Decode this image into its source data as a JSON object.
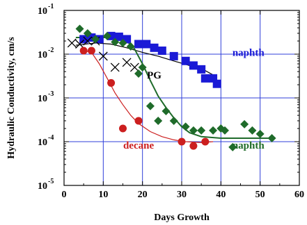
{
  "chart_data": {
    "type": "scatter",
    "title": "",
    "xlabel": "Days Growth",
    "ylabel": "Hydraulic Conductivity, cm/s",
    "xlim": [
      0,
      60
    ],
    "ylim": [
      1e-05,
      0.1
    ],
    "yscale": "log",
    "grid": true,
    "x_ticks": [
      0,
      10,
      20,
      30,
      40,
      50,
      60
    ],
    "y_ticks": [
      {
        "value": 0.1,
        "base": "10",
        "exp": "-1"
      },
      {
        "value": 0.01,
        "base": "10",
        "exp": "-2"
      },
      {
        "value": 0.001,
        "base": "10",
        "exp": "-3"
      },
      {
        "value": 0.0001,
        "base": "10",
        "exp": "-4"
      },
      {
        "value": 1e-05,
        "base": "10",
        "exp": "-5"
      }
    ],
    "series": [
      {
        "name": "naphth",
        "marker": "square",
        "color": "#1a1ad6",
        "label_color": "#1a1ad6",
        "label_at": [
          47,
          0.0092
        ],
        "points": [
          [
            5,
            0.022
          ],
          [
            7,
            0.024
          ],
          [
            9,
            0.022
          ],
          [
            12,
            0.026
          ],
          [
            14,
            0.025
          ],
          [
            16,
            0.022
          ],
          [
            19,
            0.017
          ],
          [
            21,
            0.017
          ],
          [
            23,
            0.014
          ],
          [
            25,
            0.012
          ],
          [
            28,
            0.009
          ],
          [
            31,
            0.007
          ],
          [
            33,
            0.0055
          ],
          [
            35,
            0.0045
          ],
          [
            36,
            0.0028
          ],
          [
            38,
            0.0028
          ],
          [
            39,
            0.0021
          ]
        ],
        "trend": []
      },
      {
        "name": "PG",
        "marker": "x",
        "color": "#000000",
        "label_color": "#000000",
        "label_at": [
          23,
          0.0028
        ],
        "points": [
          [
            2,
            0.018
          ],
          [
            4,
            0.017
          ],
          [
            6,
            0.02
          ],
          [
            8,
            0.02
          ],
          [
            10,
            0.009
          ],
          [
            13,
            0.005
          ],
          [
            16,
            0.0065
          ],
          [
            18,
            0.005
          ]
        ],
        "trend": [
          [
            3,
            0.016
          ],
          [
            8,
            0.018
          ],
          [
            12,
            0.017
          ],
          [
            16,
            0.014
          ],
          [
            20,
            0.011
          ],
          [
            24,
            0.009
          ],
          [
            28,
            0.007
          ],
          [
            32,
            0.0055
          ],
          [
            36,
            0.0042
          ],
          [
            39,
            0.003
          ]
        ]
      },
      {
        "name": "decane",
        "marker": "circle",
        "color": "#cc1f1f",
        "label_color": "#cc1f1f",
        "label_at": [
          19,
          7e-05
        ],
        "points": [
          [
            5,
            0.012
          ],
          [
            7,
            0.012
          ],
          [
            12,
            0.0022
          ],
          [
            15,
            0.0002
          ],
          [
            19,
            0.0003
          ],
          [
            30,
            0.0001
          ],
          [
            33,
            8e-05
          ],
          [
            36,
            0.0001
          ]
        ],
        "trend": [
          [
            5,
            0.012
          ],
          [
            7,
            0.011
          ],
          [
            9,
            0.006
          ],
          [
            11,
            0.0028
          ],
          [
            13,
            0.0013
          ],
          [
            15,
            0.0007
          ],
          [
            17,
            0.0004
          ],
          [
            19,
            0.00026
          ],
          [
            22,
            0.00017
          ],
          [
            25,
            0.00013
          ],
          [
            28,
            0.00011
          ],
          [
            31,
            0.0001
          ],
          [
            35,
            9.5e-05
          ],
          [
            38,
            0.0001
          ]
        ]
      },
      {
        "name": "naphth",
        "marker": "diamond",
        "color": "#1f6b2a",
        "label_color": "#1f6b2a",
        "label_at": [
          47,
          7e-05
        ],
        "points": [
          [
            4,
            0.038
          ],
          [
            6,
            0.03
          ],
          [
            8,
            0.022
          ],
          [
            11,
            0.026
          ],
          [
            13,
            0.019
          ],
          [
            15,
            0.018
          ],
          [
            17,
            0.015
          ],
          [
            19,
            0.0036
          ],
          [
            20,
            0.005
          ],
          [
            22,
            0.00065
          ],
          [
            24,
            0.0003
          ],
          [
            26,
            0.0005
          ],
          [
            28,
            0.0003
          ],
          [
            31,
            0.00022
          ],
          [
            33,
            0.00018
          ],
          [
            35,
            0.00018
          ],
          [
            38,
            0.00018
          ],
          [
            40,
            0.0002
          ],
          [
            41,
            0.00018
          ],
          [
            43,
            7.5e-05
          ],
          [
            46,
            0.00025
          ],
          [
            48,
            0.00018
          ],
          [
            50,
            0.00015
          ],
          [
            53,
            0.00012
          ]
        ],
        "trend": [
          [
            3,
            0.024
          ],
          [
            8,
            0.024
          ],
          [
            12,
            0.024
          ],
          [
            16,
            0.02
          ],
          [
            18,
            0.013
          ],
          [
            20,
            0.006
          ],
          [
            22,
            0.0025
          ],
          [
            24,
            0.0011
          ],
          [
            26,
            0.0006
          ],
          [
            28,
            0.00035
          ],
          [
            30,
            0.00022
          ],
          [
            32,
            0.00016
          ],
          [
            35,
            0.00013
          ],
          [
            40,
            0.00012
          ],
          [
            45,
            0.00012
          ],
          [
            50,
            0.00012
          ],
          [
            53,
            0.00012
          ]
        ]
      }
    ]
  }
}
